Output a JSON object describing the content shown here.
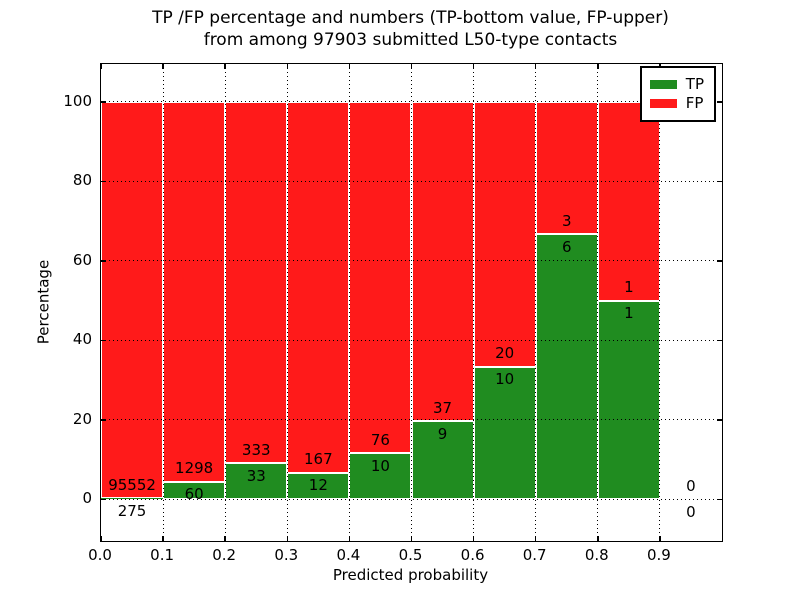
{
  "title": {
    "line1": "TP /FP percentage and numbers (TP-bottom value, FP-upper)",
    "line2": "from among 97903 submitted L50-type contacts"
  },
  "chart_data": {
    "type": "bar",
    "stacked": true,
    "normalized_to_percent": true,
    "title": "TP /FP percentage and numbers (TP-bottom value, FP-upper) from among 97903 submitted L50-type contacts",
    "xlabel": "Predicted probability",
    "ylabel": "Percentage",
    "xlim": [
      0.0,
      1.0
    ],
    "ylim": [
      -10.5,
      109.5
    ],
    "x_ticks": [
      "0.0",
      "0.1",
      "0.2",
      "0.3",
      "0.4",
      "0.5",
      "0.6",
      "0.7",
      "0.8",
      "0.9"
    ],
    "y_ticks": [
      "0",
      "20",
      "40",
      "60",
      "80",
      "100"
    ],
    "grid": "dotted-black-over-bars",
    "total_submitted": 97903,
    "legend": [
      {
        "label": "TP",
        "color": "#208c20"
      },
      {
        "label": "FP",
        "color": "#ff1a1a"
      }
    ],
    "series_note": "TP count annotated below stack boundary, FP count above it",
    "bins": [
      {
        "x0": 0.0,
        "x1": 0.1,
        "tp": 275,
        "fp": 95552
      },
      {
        "x0": 0.1,
        "x1": 0.2,
        "tp": 60,
        "fp": 1298
      },
      {
        "x0": 0.2,
        "x1": 0.3,
        "tp": 33,
        "fp": 333
      },
      {
        "x0": 0.3,
        "x1": 0.4,
        "tp": 12,
        "fp": 167
      },
      {
        "x0": 0.4,
        "x1": 0.5,
        "tp": 10,
        "fp": 76
      },
      {
        "x0": 0.5,
        "x1": 0.6,
        "tp": 9,
        "fp": 37
      },
      {
        "x0": 0.6,
        "x1": 0.7,
        "tp": 10,
        "fp": 20
      },
      {
        "x0": 0.7,
        "x1": 0.8,
        "tp": 6,
        "fp": 3
      },
      {
        "x0": 0.8,
        "x1": 0.9,
        "tp": 1,
        "fp": 1
      },
      {
        "x0": 0.9,
        "x1": 1.0,
        "tp": 0,
        "fp": 0
      }
    ],
    "colors": {
      "tp": "#208c20",
      "fp": "#ff1a1a",
      "bar_edge": "#ffffff",
      "grid": "#000000",
      "background": "#ffffff"
    }
  }
}
